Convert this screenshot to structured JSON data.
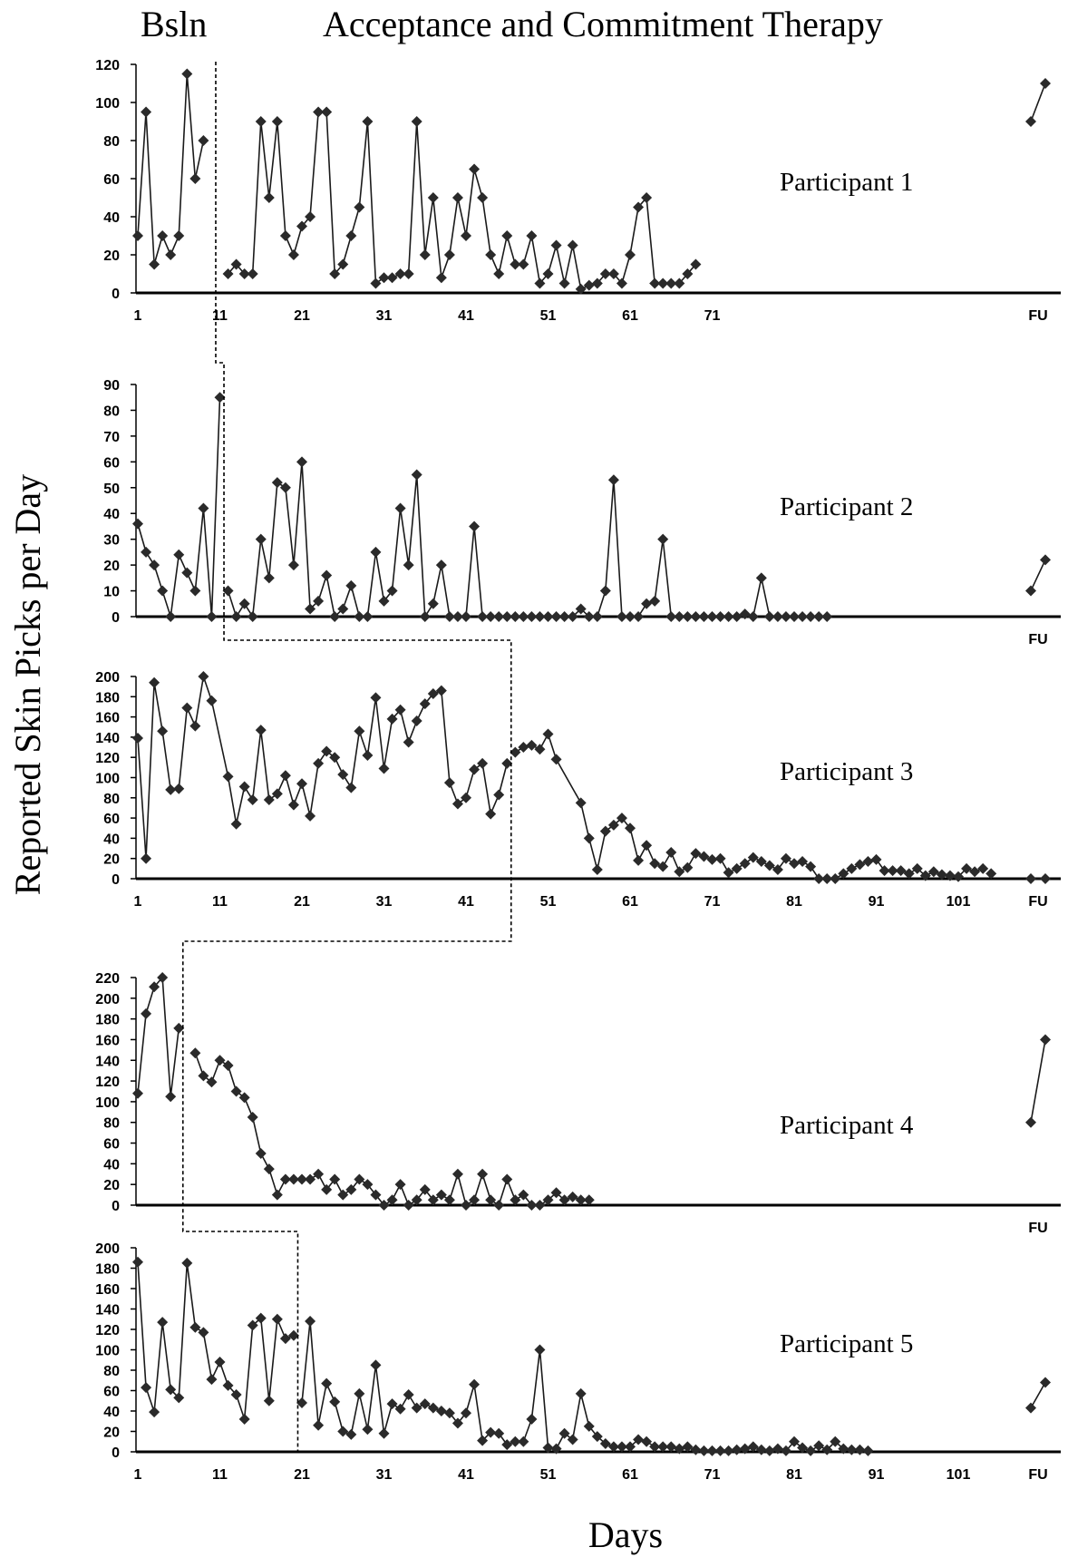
{
  "phase_labels": {
    "baseline": "Bsln",
    "treatment": "Acceptance and Commitment Therapy"
  },
  "ylabel": "Reported Skin Picks per Day",
  "xlabel": "Days",
  "chart_data": [
    {
      "type": "line",
      "name": "Participant 1",
      "ylim": [
        0,
        120
      ],
      "yticks": [
        0,
        20,
        40,
        60,
        80,
        100,
        120
      ],
      "xtick_labels": [
        "1",
        "11",
        "21",
        "31",
        "41",
        "51",
        "61",
        "71",
        "FU"
      ],
      "xtick_values": [
        1,
        11,
        21,
        31,
        41,
        51,
        61,
        71,
        "FU"
      ],
      "phase_change_after_day": 10,
      "segments": [
        {
          "x": [
            1,
            2,
            3,
            4,
            5,
            6,
            7,
            8,
            9
          ],
          "y": [
            30,
            95,
            15,
            30,
            20,
            30,
            115,
            60,
            80
          ]
        },
        {
          "x": [
            12,
            13,
            14,
            15,
            16,
            17,
            18,
            19,
            20,
            21,
            22,
            23,
            24,
            25,
            26,
            27,
            28,
            29,
            30,
            31,
            32,
            33,
            34,
            35,
            36,
            37,
            38,
            39,
            40,
            41,
            42,
            43,
            44,
            45,
            46,
            47,
            48,
            49,
            50,
            51,
            52,
            53,
            54,
            55,
            56,
            57,
            58,
            59,
            60,
            61,
            62,
            63,
            64,
            65,
            66,
            67,
            68,
            69
          ],
          "y": [
            10,
            15,
            10,
            10,
            90,
            50,
            90,
            30,
            20,
            35,
            40,
            95,
            95,
            10,
            15,
            30,
            45,
            90,
            5,
            8,
            8,
            10,
            10,
            90,
            20,
            50,
            8,
            20,
            50,
            30,
            65,
            50,
            20,
            10,
            30,
            15,
            15,
            30,
            5,
            10,
            25,
            5,
            25,
            2,
            4,
            5,
            10,
            10,
            5,
            20,
            45,
            50,
            5,
            5,
            5,
            5,
            10,
            15
          ]
        }
      ],
      "fu": {
        "y": [
          90,
          110
        ]
      }
    },
    {
      "type": "line",
      "name": "Participant 2",
      "ylim": [
        0,
        90
      ],
      "yticks": [
        0,
        10,
        20,
        30,
        40,
        50,
        60,
        70,
        80,
        90
      ],
      "xtick_labels": [
        "FU"
      ],
      "xtick_values": [
        "FU"
      ],
      "phase_change_after_day": 11,
      "segments": [
        {
          "x": [
            1,
            2,
            3,
            4,
            5,
            6,
            7,
            8,
            9,
            10,
            11
          ],
          "y": [
            36,
            25,
            20,
            10,
            0,
            24,
            17,
            10,
            42,
            0,
            85
          ]
        },
        {
          "x": [
            12,
            13,
            14,
            15,
            16,
            17,
            18,
            19,
            20,
            21,
            22,
            23,
            24,
            25,
            26,
            27,
            28,
            29,
            30,
            31,
            32,
            33,
            34,
            35,
            36,
            37,
            38,
            39,
            40,
            41,
            42,
            43,
            44,
            45,
            46,
            47,
            48,
            49,
            50,
            51,
            52,
            53,
            54,
            55,
            56,
            57,
            58,
            59,
            60,
            61,
            62,
            63,
            64,
            65,
            66,
            67,
            68,
            69,
            70,
            71,
            72,
            73,
            74,
            75,
            76,
            77,
            78,
            79,
            80,
            81,
            82,
            83,
            84,
            85
          ],
          "y": [
            10,
            0,
            5,
            0,
            30,
            15,
            52,
            50,
            20,
            60,
            3,
            6,
            16,
            0,
            3,
            12,
            0,
            0,
            25,
            6,
            10,
            42,
            20,
            55,
            0,
            5,
            20,
            0,
            0,
            0,
            35,
            0,
            0,
            0,
            0,
            0,
            0,
            0,
            0,
            0,
            0,
            0,
            0,
            3,
            0,
            0,
            10,
            53,
            0,
            0,
            0,
            5,
            6,
            30,
            0,
            0,
            0,
            0,
            0,
            0,
            0,
            0,
            0,
            1,
            0,
            15,
            0,
            0,
            0,
            0,
            0,
            0,
            0,
            0
          ]
        }
      ],
      "fu": {
        "y": [
          10,
          22
        ]
      }
    },
    {
      "type": "line",
      "name": "Participant 3",
      "ylim": [
        0,
        200
      ],
      "yticks": [
        0,
        20,
        40,
        60,
        80,
        100,
        120,
        140,
        160,
        180,
        200
      ],
      "xtick_labels": [
        "1",
        "11",
        "21",
        "31",
        "41",
        "51",
        "61",
        "71",
        "81",
        "91",
        "101",
        "FU"
      ],
      "xtick_values": [
        1,
        11,
        21,
        31,
        41,
        51,
        61,
        71,
        81,
        91,
        101,
        "FU"
      ],
      "phase_change_after_day": 46,
      "segments": [
        {
          "x": [
            1,
            2,
            3,
            4,
            5,
            6,
            7,
            8,
            9,
            10,
            12,
            13,
            14,
            15,
            16,
            17,
            18,
            19,
            20,
            21,
            22,
            23,
            24,
            25,
            26,
            27,
            28,
            29,
            30,
            31,
            32,
            33,
            34,
            35,
            36,
            37,
            38,
            39,
            40,
            41,
            42,
            43,
            44,
            45,
            46
          ],
          "y": [
            139,
            20,
            194,
            146,
            88,
            89,
            169,
            151,
            200,
            176,
            101,
            54,
            91,
            78,
            147,
            78,
            84,
            102,
            73,
            94,
            62,
            114,
            126,
            120,
            103,
            90,
            146,
            122,
            179,
            109,
            158,
            167,
            135,
            156,
            173,
            183,
            186,
            95,
            74,
            80,
            108,
            114,
            64,
            83,
            114
          ]
        },
        {
          "x": [
            47,
            48,
            49,
            50,
            51,
            52,
            55,
            56,
            57,
            58,
            59,
            60,
            61,
            62,
            63,
            64,
            65,
            66,
            67,
            68,
            69,
            70,
            71,
            72,
            73,
            74,
            75,
            76,
            77,
            78,
            79,
            80,
            81,
            82,
            83,
            84,
            85,
            86,
            87,
            88,
            89,
            90,
            91,
            92,
            93,
            94,
            95,
            96,
            97,
            98,
            99,
            100,
            101,
            102,
            103,
            104
          ],
          "y": [
            125,
            130,
            132,
            128,
            143,
            118,
            75,
            40,
            9,
            47,
            53,
            60,
            50,
            18,
            33,
            15,
            12,
            26,
            7,
            11,
            25,
            22,
            19,
            20,
            6,
            10,
            15,
            21,
            17,
            13,
            9,
            20,
            15,
            17,
            12,
            0,
            0,
            0,
            5,
            10,
            14,
            17,
            19,
            8,
            8,
            8,
            5,
            10,
            3,
            7,
            4,
            3,
            2,
            10,
            7,
            10
          ]
        },
        {
          "x": [
            105
          ],
          "y": [
            5
          ]
        }
      ],
      "fu": {
        "y": [
          0,
          0
        ]
      }
    },
    {
      "type": "line",
      "name": "Participant 4",
      "ylim": [
        0,
        220
      ],
      "yticks": [
        0,
        20,
        40,
        60,
        80,
        100,
        120,
        140,
        160,
        180,
        200,
        220
      ],
      "xtick_labels": [
        "FU"
      ],
      "xtick_values": [
        "FU"
      ],
      "phase_change_after_day": 6,
      "segments": [
        {
          "x": [
            1,
            2,
            3,
            4,
            5,
            6
          ],
          "y": [
            108,
            185,
            211,
            220,
            105,
            171
          ]
        },
        {
          "x": [
            8,
            9,
            10,
            11,
            12,
            13,
            14,
            15,
            16,
            17,
            18,
            19,
            20,
            21,
            22,
            23,
            24,
            25,
            26,
            27,
            28,
            29,
            30,
            31,
            32,
            33,
            34,
            35,
            36,
            37,
            38,
            39,
            40,
            41,
            42,
            43,
            44,
            45,
            46,
            47,
            48,
            49,
            50,
            51,
            52,
            53,
            54,
            55,
            56
          ],
          "y": [
            147,
            125,
            119,
            140,
            135,
            110,
            104,
            85,
            50,
            35,
            10,
            25,
            25,
            25,
            25,
            30,
            15,
            25,
            10,
            15,
            25,
            20,
            10,
            0,
            5,
            20,
            0,
            5,
            15,
            5,
            10,
            5,
            30,
            0,
            5,
            30,
            5,
            0,
            25,
            5,
            10,
            0,
            0,
            5,
            12,
            5,
            8,
            5,
            5
          ]
        }
      ],
      "fu": {
        "y": [
          80,
          160
        ]
      }
    },
    {
      "type": "line",
      "name": "Participant 5",
      "ylim": [
        0,
        200
      ],
      "yticks": [
        0,
        20,
        40,
        60,
        80,
        100,
        120,
        140,
        160,
        180,
        200
      ],
      "xtick_labels": [
        "1",
        "11",
        "21",
        "31",
        "41",
        "51",
        "61",
        "71",
        "81",
        "91",
        "101",
        "FU"
      ],
      "xtick_values": [
        1,
        11,
        21,
        31,
        41,
        51,
        61,
        71,
        81,
        91,
        101,
        "FU"
      ],
      "phase_change_after_day": 20,
      "segments": [
        {
          "x": [
            1,
            2,
            3,
            4,
            5,
            6,
            7,
            8,
            9,
            10,
            11,
            12,
            13,
            14,
            15,
            16,
            17,
            18,
            19,
            20
          ],
          "y": [
            186,
            63,
            39,
            127,
            61,
            53,
            185,
            122,
            117,
            71,
            88,
            65,
            56,
            32,
            124,
            131,
            50,
            130,
            111,
            114
          ]
        },
        {
          "x": [
            21,
            22,
            23,
            24,
            25,
            26,
            27,
            28,
            29,
            30,
            31,
            32,
            33,
            34,
            35,
            36,
            37,
            38,
            39,
            40,
            41,
            42,
            43,
            44,
            45,
            46,
            47,
            48,
            49,
            50,
            51,
            52,
            53,
            54,
            55,
            56,
            57,
            58,
            59,
            60,
            61,
            62,
            63,
            64,
            65,
            66,
            67,
            68,
            69,
            70,
            71,
            72,
            73,
            74,
            75,
            76,
            77,
            78,
            79,
            80,
            81,
            82,
            83,
            84,
            85,
            86,
            87,
            88,
            89,
            90
          ],
          "y": [
            48,
            128,
            26,
            67,
            49,
            20,
            17,
            57,
            22,
            85,
            18,
            47,
            42,
            56,
            43,
            47,
            43,
            40,
            38,
            28,
            38,
            66,
            11,
            19,
            18,
            7,
            10,
            10,
            32,
            100,
            4,
            3,
            18,
            12,
            57,
            25,
            15,
            8,
            5,
            5,
            5,
            12,
            10,
            5,
            5,
            5,
            3,
            5,
            2,
            1,
            1,
            1,
            1,
            2,
            3,
            5,
            2,
            1,
            3,
            1,
            10,
            4,
            1,
            6,
            2,
            10,
            3,
            2,
            2,
            1
          ]
        }
      ],
      "fu": {
        "y": [
          43,
          68
        ]
      }
    }
  ]
}
